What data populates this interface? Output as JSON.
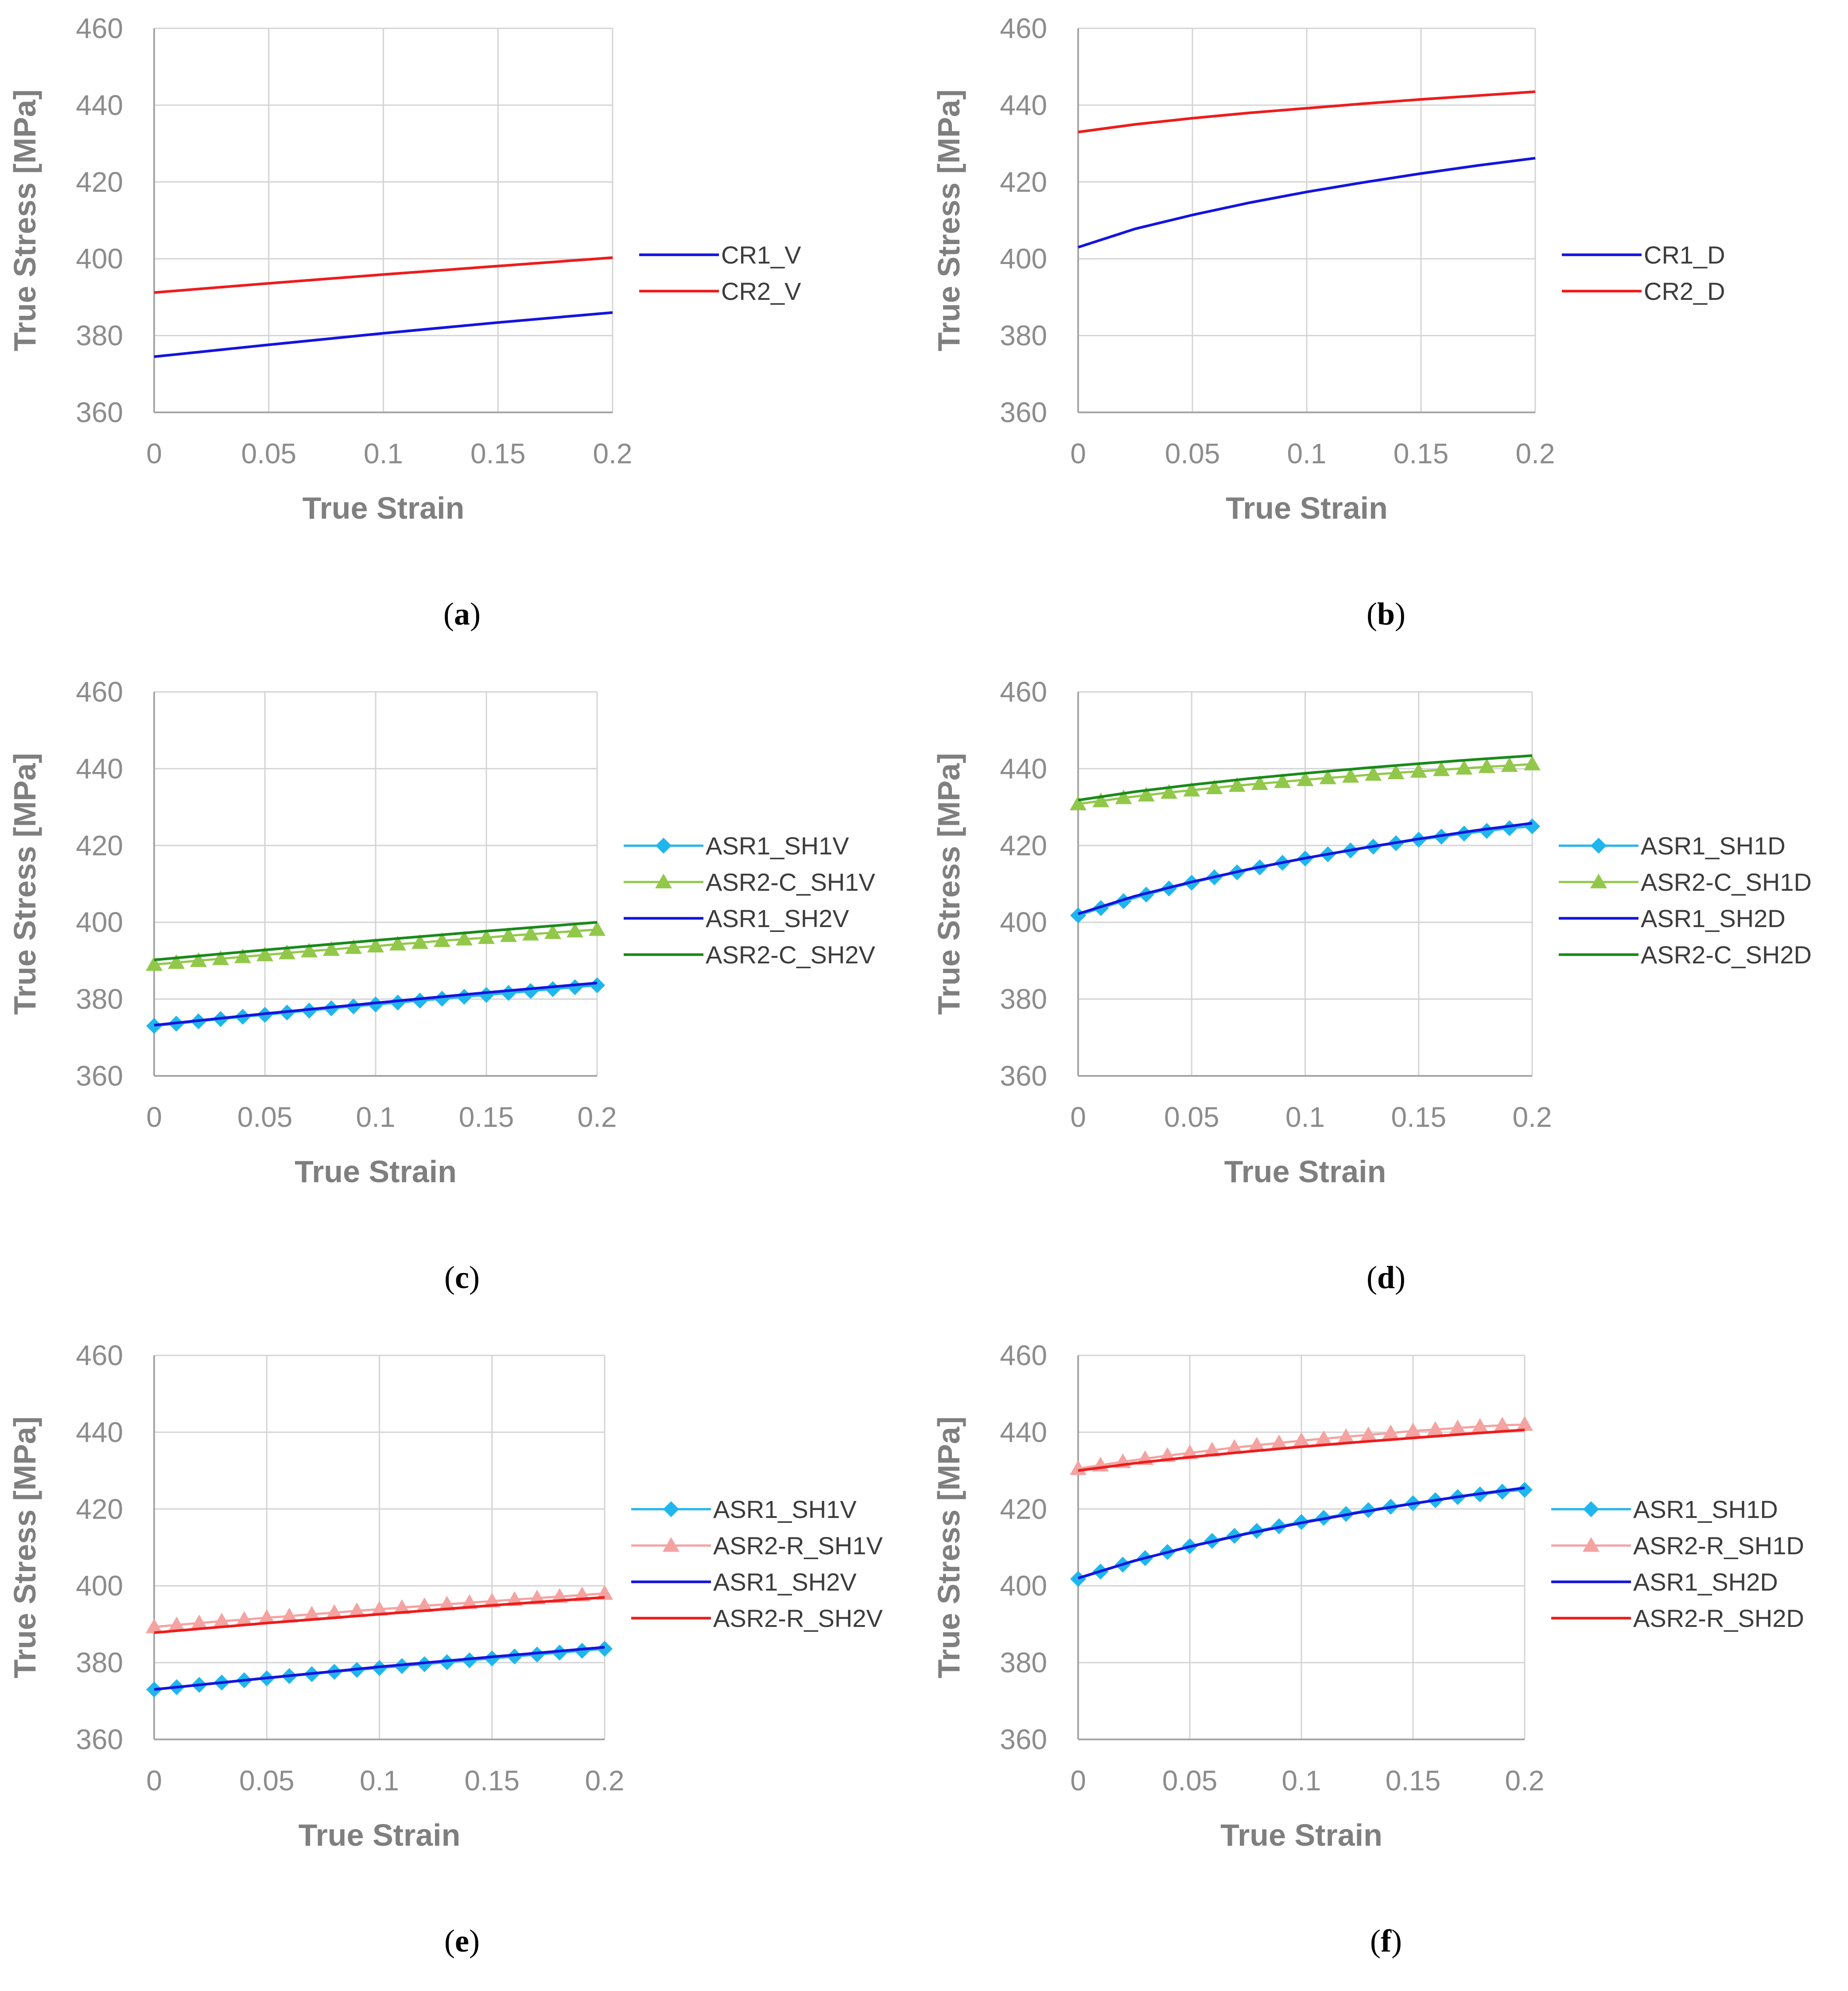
{
  "colors": {
    "light_blue": "#1fb6ee",
    "light_green": "#92c84a",
    "salmon": "#f4a3a1",
    "blue": "#1414e0",
    "red": "#ee1c1c",
    "green": "#1a8a1a",
    "axis_text": "#8c8c8c",
    "grid": "#d4d4d4"
  },
  "chart_data": [
    {
      "id": "a",
      "type": "line",
      "caption": "a",
      "xlabel": "True Strain",
      "ylabel": "True Stress [MPa]",
      "xlim": [
        0,
        0.2
      ],
      "ylim": [
        360,
        460
      ],
      "x_ticks": [
        "0",
        "0.05",
        "0.1",
        "0.15",
        "0.2"
      ],
      "y_ticks": [
        "360",
        "380",
        "400",
        "420",
        "440",
        "460"
      ],
      "grid": true,
      "series": [
        {
          "name": "CR1_V",
          "style": "line",
          "color": "#1414e0",
          "x": [
            0,
            0.05,
            0.1,
            0.15,
            0.2
          ],
          "values": [
            374.5,
            377.6,
            380.6,
            383.4,
            386.0
          ]
        },
        {
          "name": "CR2_V",
          "style": "line",
          "color": "#ee1c1c",
          "x": [
            0,
            0.05,
            0.1,
            0.15,
            0.2
          ],
          "values": [
            391.2,
            393.6,
            395.9,
            398.1,
            400.3
          ]
        }
      ]
    },
    {
      "id": "b",
      "type": "line",
      "caption": "b",
      "xlabel": "True Strain",
      "ylabel": "True Stress [MPa]",
      "xlim": [
        0,
        0.2
      ],
      "ylim": [
        360,
        460
      ],
      "x_ticks": [
        "0",
        "0.05",
        "0.1",
        "0.15",
        "0.2"
      ],
      "y_ticks": [
        "360",
        "380",
        "400",
        "420",
        "440",
        "460"
      ],
      "grid": true,
      "series": [
        {
          "name": "CR1_D",
          "style": "line",
          "color": "#1414e0",
          "x": [
            0,
            0.025,
            0.05,
            0.075,
            0.1,
            0.125,
            0.15,
            0.175,
            0.2
          ],
          "values": [
            403.0,
            407.8,
            411.4,
            414.6,
            417.4,
            419.9,
            422.2,
            424.3,
            426.2
          ]
        },
        {
          "name": "CR2_D",
          "style": "line",
          "color": "#ee1c1c",
          "x": [
            0,
            0.025,
            0.05,
            0.075,
            0.1,
            0.125,
            0.15,
            0.175,
            0.2
          ],
          "values": [
            433.0,
            435.0,
            436.6,
            438.0,
            439.2,
            440.4,
            441.5,
            442.5,
            443.5
          ]
        }
      ]
    },
    {
      "id": "c",
      "type": "line",
      "caption": "c",
      "xlabel": "True Strain",
      "ylabel": "True Stress [MPa]",
      "xlim": [
        0,
        0.2
      ],
      "ylim": [
        360,
        460
      ],
      "x_ticks": [
        "0",
        "0.05",
        "0.1",
        "0.15",
        "0.2"
      ],
      "y_ticks": [
        "360",
        "380",
        "400",
        "420",
        "440",
        "460"
      ],
      "grid": true,
      "series": [
        {
          "name": "ASR1_SH1V",
          "style": "marker",
          "marker": "diamond",
          "color": "#1fb6ee",
          "x": [
            0,
            0.01,
            0.02,
            0.03,
            0.04,
            0.05,
            0.06,
            0.07,
            0.08,
            0.09,
            0.1,
            0.11,
            0.12,
            0.13,
            0.14,
            0.15,
            0.16,
            0.17,
            0.18,
            0.19,
            0.2
          ],
          "values": [
            373.0,
            373.6,
            374.2,
            374.8,
            375.4,
            375.9,
            376.5,
            377.0,
            377.6,
            378.1,
            378.6,
            379.1,
            379.6,
            380.1,
            380.6,
            381.1,
            381.6,
            382.1,
            382.6,
            383.1,
            383.6
          ]
        },
        {
          "name": "ASR2-C_SH1V",
          "style": "marker",
          "marker": "triangle",
          "color": "#92c84a",
          "x": [
            0,
            0.01,
            0.02,
            0.03,
            0.04,
            0.05,
            0.06,
            0.07,
            0.08,
            0.09,
            0.1,
            0.11,
            0.12,
            0.13,
            0.14,
            0.15,
            0.16,
            0.17,
            0.18,
            0.19,
            0.2
          ],
          "values": [
            389.0,
            389.5,
            390.0,
            390.5,
            391.0,
            391.5,
            392.0,
            392.5,
            392.9,
            393.4,
            393.8,
            394.3,
            394.7,
            395.2,
            395.6,
            396.0,
            396.5,
            396.9,
            397.3,
            397.7,
            398.1
          ]
        },
        {
          "name": "ASR1_SH2V",
          "style": "line",
          "color": "#1414e0",
          "x": [
            0,
            0.05,
            0.1,
            0.15,
            0.2
          ],
          "values": [
            373.2,
            376.2,
            379.0,
            381.7,
            384.2
          ]
        },
        {
          "name": "ASR2-C_SH2V",
          "style": "line",
          "color": "#1a8a1a",
          "x": [
            0,
            0.05,
            0.1,
            0.15,
            0.2
          ],
          "values": [
            390.2,
            392.8,
            395.3,
            397.7,
            400.0
          ]
        }
      ]
    },
    {
      "id": "d",
      "type": "line",
      "caption": "d",
      "xlabel": "True Strain",
      "ylabel": "True Stress [MPa]",
      "xlim": [
        0,
        0.2
      ],
      "ylim": [
        360,
        460
      ],
      "x_ticks": [
        "0",
        "0.05",
        "0.1",
        "0.15",
        "0.2"
      ],
      "y_ticks": [
        "360",
        "380",
        "400",
        "420",
        "440",
        "460"
      ],
      "grid": true,
      "series": [
        {
          "name": "ASR1_SH1D",
          "style": "marker",
          "marker": "diamond",
          "color": "#1fb6ee",
          "x": [
            0,
            0.01,
            0.02,
            0.03,
            0.04,
            0.05,
            0.06,
            0.07,
            0.08,
            0.09,
            0.1,
            0.11,
            0.12,
            0.13,
            0.14,
            0.15,
            0.16,
            0.17,
            0.18,
            0.19,
            0.2
          ],
          "values": [
            401.8,
            403.7,
            405.5,
            407.2,
            408.8,
            410.3,
            411.7,
            413.0,
            414.3,
            415.5,
            416.6,
            417.7,
            418.7,
            419.7,
            420.6,
            421.5,
            422.3,
            423.1,
            423.8,
            424.5,
            425.0
          ]
        },
        {
          "name": "ASR2-C_SH1D",
          "style": "marker",
          "marker": "triangle",
          "color": "#92c84a",
          "x": [
            0,
            0.01,
            0.02,
            0.03,
            0.04,
            0.05,
            0.06,
            0.07,
            0.08,
            0.09,
            0.1,
            0.11,
            0.12,
            0.13,
            0.14,
            0.15,
            0.16,
            0.17,
            0.18,
            0.19,
            0.2
          ],
          "values": [
            430.8,
            431.6,
            432.4,
            433.1,
            433.8,
            434.4,
            435.0,
            435.6,
            436.1,
            436.6,
            437.1,
            437.6,
            438.0,
            438.5,
            438.9,
            439.3,
            439.7,
            440.1,
            440.5,
            440.8,
            441.2
          ]
        },
        {
          "name": "ASR1_SH2D",
          "style": "line",
          "color": "#1414e0",
          "x": [
            0,
            0.025,
            0.05,
            0.075,
            0.1,
            0.125,
            0.15,
            0.175,
            0.2
          ],
          "values": [
            402.2,
            406.8,
            410.5,
            413.8,
            416.7,
            419.3,
            421.7,
            423.9,
            425.8
          ]
        },
        {
          "name": "ASR2-C_SH2D",
          "style": "line",
          "color": "#1a8a1a",
          "x": [
            0,
            0.025,
            0.05,
            0.075,
            0.1,
            0.125,
            0.15,
            0.175,
            0.2
          ],
          "values": [
            431.8,
            434.0,
            435.8,
            437.4,
            438.8,
            440.1,
            441.3,
            442.4,
            443.4
          ]
        }
      ]
    },
    {
      "id": "e",
      "type": "line",
      "caption": "e",
      "xlabel": "True Strain",
      "ylabel": "True Stress [MPa]",
      "xlim": [
        0,
        0.2
      ],
      "ylim": [
        360,
        460
      ],
      "x_ticks": [
        "0",
        "0.05",
        "0.1",
        "0.15",
        "0.2"
      ],
      "y_ticks": [
        "360",
        "380",
        "400",
        "420",
        "440",
        "460"
      ],
      "grid": true,
      "series": [
        {
          "name": "ASR1_SH1V",
          "style": "marker",
          "marker": "diamond",
          "color": "#1fb6ee",
          "x": [
            0,
            0.01,
            0.02,
            0.03,
            0.04,
            0.05,
            0.06,
            0.07,
            0.08,
            0.09,
            0.1,
            0.11,
            0.12,
            0.13,
            0.14,
            0.15,
            0.16,
            0.17,
            0.18,
            0.19,
            0.2
          ],
          "values": [
            373.0,
            373.6,
            374.2,
            374.8,
            375.4,
            375.9,
            376.5,
            377.0,
            377.6,
            378.1,
            378.6,
            379.1,
            379.6,
            380.1,
            380.6,
            381.1,
            381.6,
            382.1,
            382.6,
            383.1,
            383.6
          ]
        },
        {
          "name": "ASR2-R_SH1V",
          "style": "marker",
          "marker": "triangle",
          "color": "#f4a3a1",
          "x": [
            0,
            0.01,
            0.02,
            0.03,
            0.04,
            0.05,
            0.06,
            0.07,
            0.08,
            0.09,
            0.1,
            0.11,
            0.12,
            0.13,
            0.14,
            0.15,
            0.16,
            0.17,
            0.18,
            0.19,
            0.2
          ],
          "values": [
            389.3,
            389.8,
            390.3,
            390.8,
            391.2,
            391.7,
            392.1,
            392.6,
            393.0,
            393.5,
            393.9,
            394.3,
            394.8,
            395.2,
            395.6,
            396.0,
            396.4,
            396.8,
            397.2,
            397.6,
            398.0
          ]
        },
        {
          "name": "ASR1_SH2V",
          "style": "line",
          "color": "#1414e0",
          "x": [
            0,
            0.05,
            0.1,
            0.15,
            0.2
          ],
          "values": [
            373.0,
            376.0,
            378.9,
            381.5,
            384.0
          ]
        },
        {
          "name": "ASR2-R_SH2V",
          "style": "line",
          "color": "#ee1c1c",
          "x": [
            0,
            0.05,
            0.1,
            0.15,
            0.2
          ],
          "values": [
            387.8,
            390.3,
            392.6,
            394.9,
            397.0
          ]
        }
      ]
    },
    {
      "id": "f",
      "type": "line",
      "caption": "f",
      "xlabel": "True Strain",
      "ylabel": "True Stress [MPa]",
      "xlim": [
        0,
        0.2
      ],
      "ylim": [
        360,
        460
      ],
      "x_ticks": [
        "0",
        "0.05",
        "0.1",
        "0.15",
        "0.2"
      ],
      "y_ticks": [
        "360",
        "380",
        "400",
        "420",
        "440",
        "460"
      ],
      "grid": true,
      "series": [
        {
          "name": "ASR1_SH1D",
          "style": "marker",
          "marker": "diamond",
          "color": "#1fb6ee",
          "x": [
            0,
            0.01,
            0.02,
            0.03,
            0.04,
            0.05,
            0.06,
            0.07,
            0.08,
            0.09,
            0.1,
            0.11,
            0.12,
            0.13,
            0.14,
            0.15,
            0.16,
            0.17,
            0.18,
            0.19,
            0.2
          ],
          "values": [
            401.8,
            403.7,
            405.5,
            407.2,
            408.8,
            410.3,
            411.7,
            413.0,
            414.3,
            415.5,
            416.6,
            417.7,
            418.7,
            419.7,
            420.6,
            421.5,
            422.3,
            423.1,
            423.8,
            424.5,
            425.0
          ]
        },
        {
          "name": "ASR2-R_SH1D",
          "style": "marker",
          "marker": "triangle",
          "color": "#f4a3a1",
          "x": [
            0,
            0.01,
            0.02,
            0.03,
            0.04,
            0.05,
            0.06,
            0.07,
            0.08,
            0.09,
            0.1,
            0.11,
            0.12,
            0.13,
            0.14,
            0.15,
            0.16,
            0.17,
            0.18,
            0.19,
            0.2
          ],
          "values": [
            430.5,
            431.4,
            432.3,
            433.1,
            433.9,
            434.6,
            435.3,
            436.0,
            436.6,
            437.2,
            437.8,
            438.3,
            438.8,
            439.3,
            439.8,
            440.3,
            440.7,
            441.1,
            441.5,
            441.8,
            442.0
          ]
        },
        {
          "name": "ASR1_SH2D",
          "style": "line",
          "color": "#1414e0",
          "x": [
            0,
            0.025,
            0.05,
            0.075,
            0.1,
            0.125,
            0.15,
            0.175,
            0.2
          ],
          "values": [
            402.0,
            406.5,
            410.2,
            413.5,
            416.4,
            419.0,
            421.4,
            423.6,
            425.5
          ]
        },
        {
          "name": "ASR2-R_SH2D",
          "style": "line",
          "color": "#ee1c1c",
          "x": [
            0,
            0.025,
            0.05,
            0.075,
            0.1,
            0.125,
            0.15,
            0.175,
            0.2
          ],
          "values": [
            430.0,
            431.9,
            433.5,
            434.9,
            436.2,
            437.4,
            438.5,
            439.6,
            440.6
          ]
        }
      ]
    }
  ]
}
